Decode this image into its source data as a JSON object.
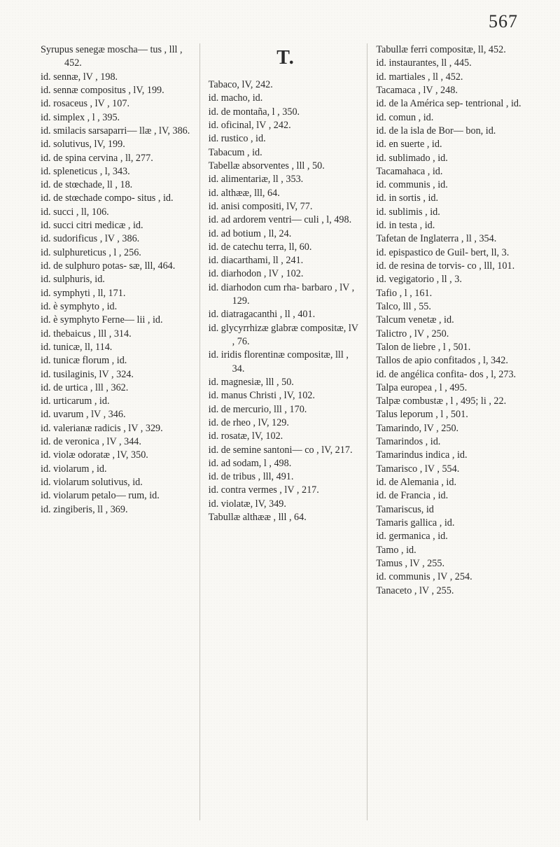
{
  "page_number": "567",
  "big_letter": "T.",
  "columns": {
    "left": [
      "Syrupus senegæ moscha— tus , lll , 452.",
      "id.  sennæ, lV , 198.",
      "id.  sennæ compositus , lV, 199.",
      "id.  rosaceus , lV , 107.",
      "id.  simplex , l , 395.",
      "id.  smilacis sarsaparri— llæ , lV, 386.",
      "id.  solutivus, lV, 199.",
      "id.  de spina cervina , ll, 277.",
      "id.  spleneticus , l, 343.",
      "id.  de stœchade, ll , 18.",
      "id.  de stœchade compo- situs , id.",
      "id.  succi , ll, 106.",
      "id.  succi citri medicæ , id.",
      "id.  sudorificus , lV , 386.",
      "id.  sulphureticus , l , 256.",
      "id.  de sulphuro potas- sæ, lll, 464.",
      "id.  sulphuris, id.",
      "id.  symphyti , ll, 171.",
      "id.  è symphyto , id.",
      "id.  è symphyto Ferne— lii , id.",
      "id.  thebaicus , lll , 314.",
      "id.  tunicæ, ll, 114.",
      "id.  tunicæ florum , id.",
      "id.  tusilaginis, lV , 324.",
      "id.  de urtica , lll , 362.",
      "id.  urticarum , id.",
      "id.  uvarum , lV , 346.",
      "id.  valerianæ radicis , lV , 329.",
      "id.  de veronica , lV , 344.",
      "id.  violæ odoratæ , lV, 350.",
      "id.  violarum , id.",
      "id.  violarum solutivus, id.",
      "id.  violarum petalo— rum, id.",
      "id.  zingiberis, ll , 369."
    ],
    "middle": [
      "Tabaco, lV, 242.",
      "id.  macho, id.",
      "id.  de montaña, l , 350.",
      "id.  oficinal, lV , 242.",
      "id.  rustico , id.",
      "Tabacum , id.",
      "Tabellæ absorventes , lll , 50.",
      "id.  alimentariæ, ll , 353.",
      "id.  althææ, lll, 64.",
      "id.  anisi compositi, lV, 77.",
      "id.  ad ardorem ventri— culi , l, 498.",
      "id.  ad botium , ll, 24.",
      "id.  de catechu terra, ll, 60.",
      "id.  diacarthami, ll , 241.",
      "id.  diarhodon , lV , 102.",
      "id.  diarhodon cum rha- barbaro , lV , 129.",
      "id.  diatragacanthi , ll , 401.",
      "id.  glycyrrhizæ glabræ compositæ, lV , 76.",
      "id.  iridis florentinæ compositæ, lll , 34.",
      "id.  magnesiæ, lll , 50.",
      "id.  manus Christi , lV, 102.",
      "id.  de mercurio, lll , 170.",
      "id.  de rheo , lV, 129.",
      "id.  rosatæ, lV, 102.",
      "id.  de semine santoni— co , lV, 217.",
      "id.  ad sodam, l , 498.",
      "id.  de tribus , lll, 491.",
      "id.  contra vermes , lV , 217.",
      "id.  violatæ, lV, 349.",
      "Tabullæ althææ , lll , 64."
    ],
    "right": [
      "Tabullæ ferri compositæ, ll, 452.",
      "id.  instaurantes, ll , 445.",
      "id.  martiales , ll , 452.",
      "Tacamaca , lV , 248.",
      "id.  de la América sep- tentrional , id.",
      "id.  comun , id.",
      "id.  de la isla de Bor— bon, id.",
      "id.  en suerte , id.",
      "id.  sublimado , id.",
      "Tacamahaca , id.",
      "id.  communis , id.",
      "id.  in sortis , id.",
      "id.  sublimis , id.",
      "id.  in testa , id.",
      "Tafetan de Inglaterra , ll , 354.",
      "id.  epispastico de Guil- bert, ll, 3.",
      "id.  de resina de torvis- co , lll, 101.",
      "id.  vegigatorio , ll , 3.",
      "Tafio , l , 161.",
      "Talco, lll , 55.",
      "Talcum venetæ , id.",
      "Talictro , lV , 250.",
      "Talon de liebre , l , 501.",
      "Tallos de apio confitados , l, 342.",
      "id.  de angélica confita- dos , l, 273.",
      "Talpa europea , l , 495.",
      "Talpæ combustæ , l , 495; li , 22.",
      "Talus leporum , l , 501.",
      "Tamarindo, lV , 250.",
      "Tamarindos , id.",
      "Tamarindus indica , id.",
      "Tamarisco , lV , 554.",
      "id.  de Alemania , id.",
      "id.  de Francia , id.",
      "Tamariscus, id",
      "Tamaris gallica , id.",
      "id.  germanica , id.",
      "Tamo , id.",
      "Tamus , lV , 255.",
      "id.  communis , lV , 254.",
      "Tanaceto , lV , 255."
    ]
  }
}
